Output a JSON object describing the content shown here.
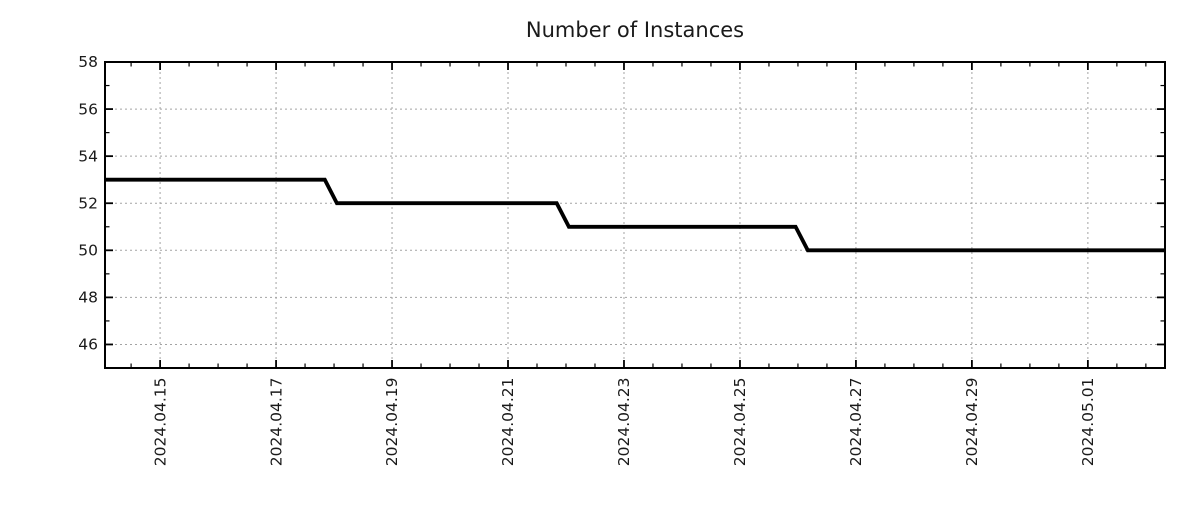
{
  "chart_data": {
    "type": "line",
    "line_style": "step",
    "title": "Number of Instances",
    "x_axis": {
      "unit": "days relative to 2024.04.15",
      "range": [
        -0.95,
        17.33
      ],
      "major_ticks": [
        {
          "value": 0,
          "label": "2024.04.15"
        },
        {
          "value": 2,
          "label": "2024.04.17"
        },
        {
          "value": 4,
          "label": "2024.04.19"
        },
        {
          "value": 6,
          "label": "2024.04.21"
        },
        {
          "value": 8,
          "label": "2024.04.23"
        },
        {
          "value": 10,
          "label": "2024.04.25"
        },
        {
          "value": 12,
          "label": "2024.04.27"
        },
        {
          "value": 14,
          "label": "2024.04.29"
        },
        {
          "value": 16,
          "label": "2024.05.01"
        }
      ],
      "minor_tick_step": 0.5,
      "label_rotation_deg": 90
    },
    "y_axis": {
      "range": [
        45,
        58
      ],
      "major_ticks": [
        46,
        48,
        50,
        52,
        54,
        56,
        58
      ],
      "minor_ticks": [
        47,
        49,
        51,
        53,
        55,
        57
      ]
    },
    "series": [
      {
        "name": "instances",
        "color": "#000000",
        "points": [
          [
            -0.95,
            53
          ],
          [
            2.84,
            53
          ],
          [
            3.05,
            52
          ],
          [
            6.84,
            52
          ],
          [
            7.05,
            51
          ],
          [
            10.96,
            51
          ],
          [
            11.17,
            50
          ],
          [
            17.33,
            50
          ]
        ]
      }
    ],
    "step_events": [
      {
        "date": "2024.04.18",
        "from": 53,
        "to": 52
      },
      {
        "date": "2024.04.22",
        "from": 52,
        "to": 51
      },
      {
        "date": "2024.04.26",
        "from": 51,
        "to": 50
      }
    ],
    "grid": {
      "show": true,
      "color": "#a3a3a3",
      "style": "dotted"
    },
    "legend": {
      "show": false
    },
    "colors": {
      "line": "#000000",
      "frame": "#000000",
      "tick": "#000000",
      "text": "#1a1a1a",
      "background": "#ffffff"
    }
  }
}
